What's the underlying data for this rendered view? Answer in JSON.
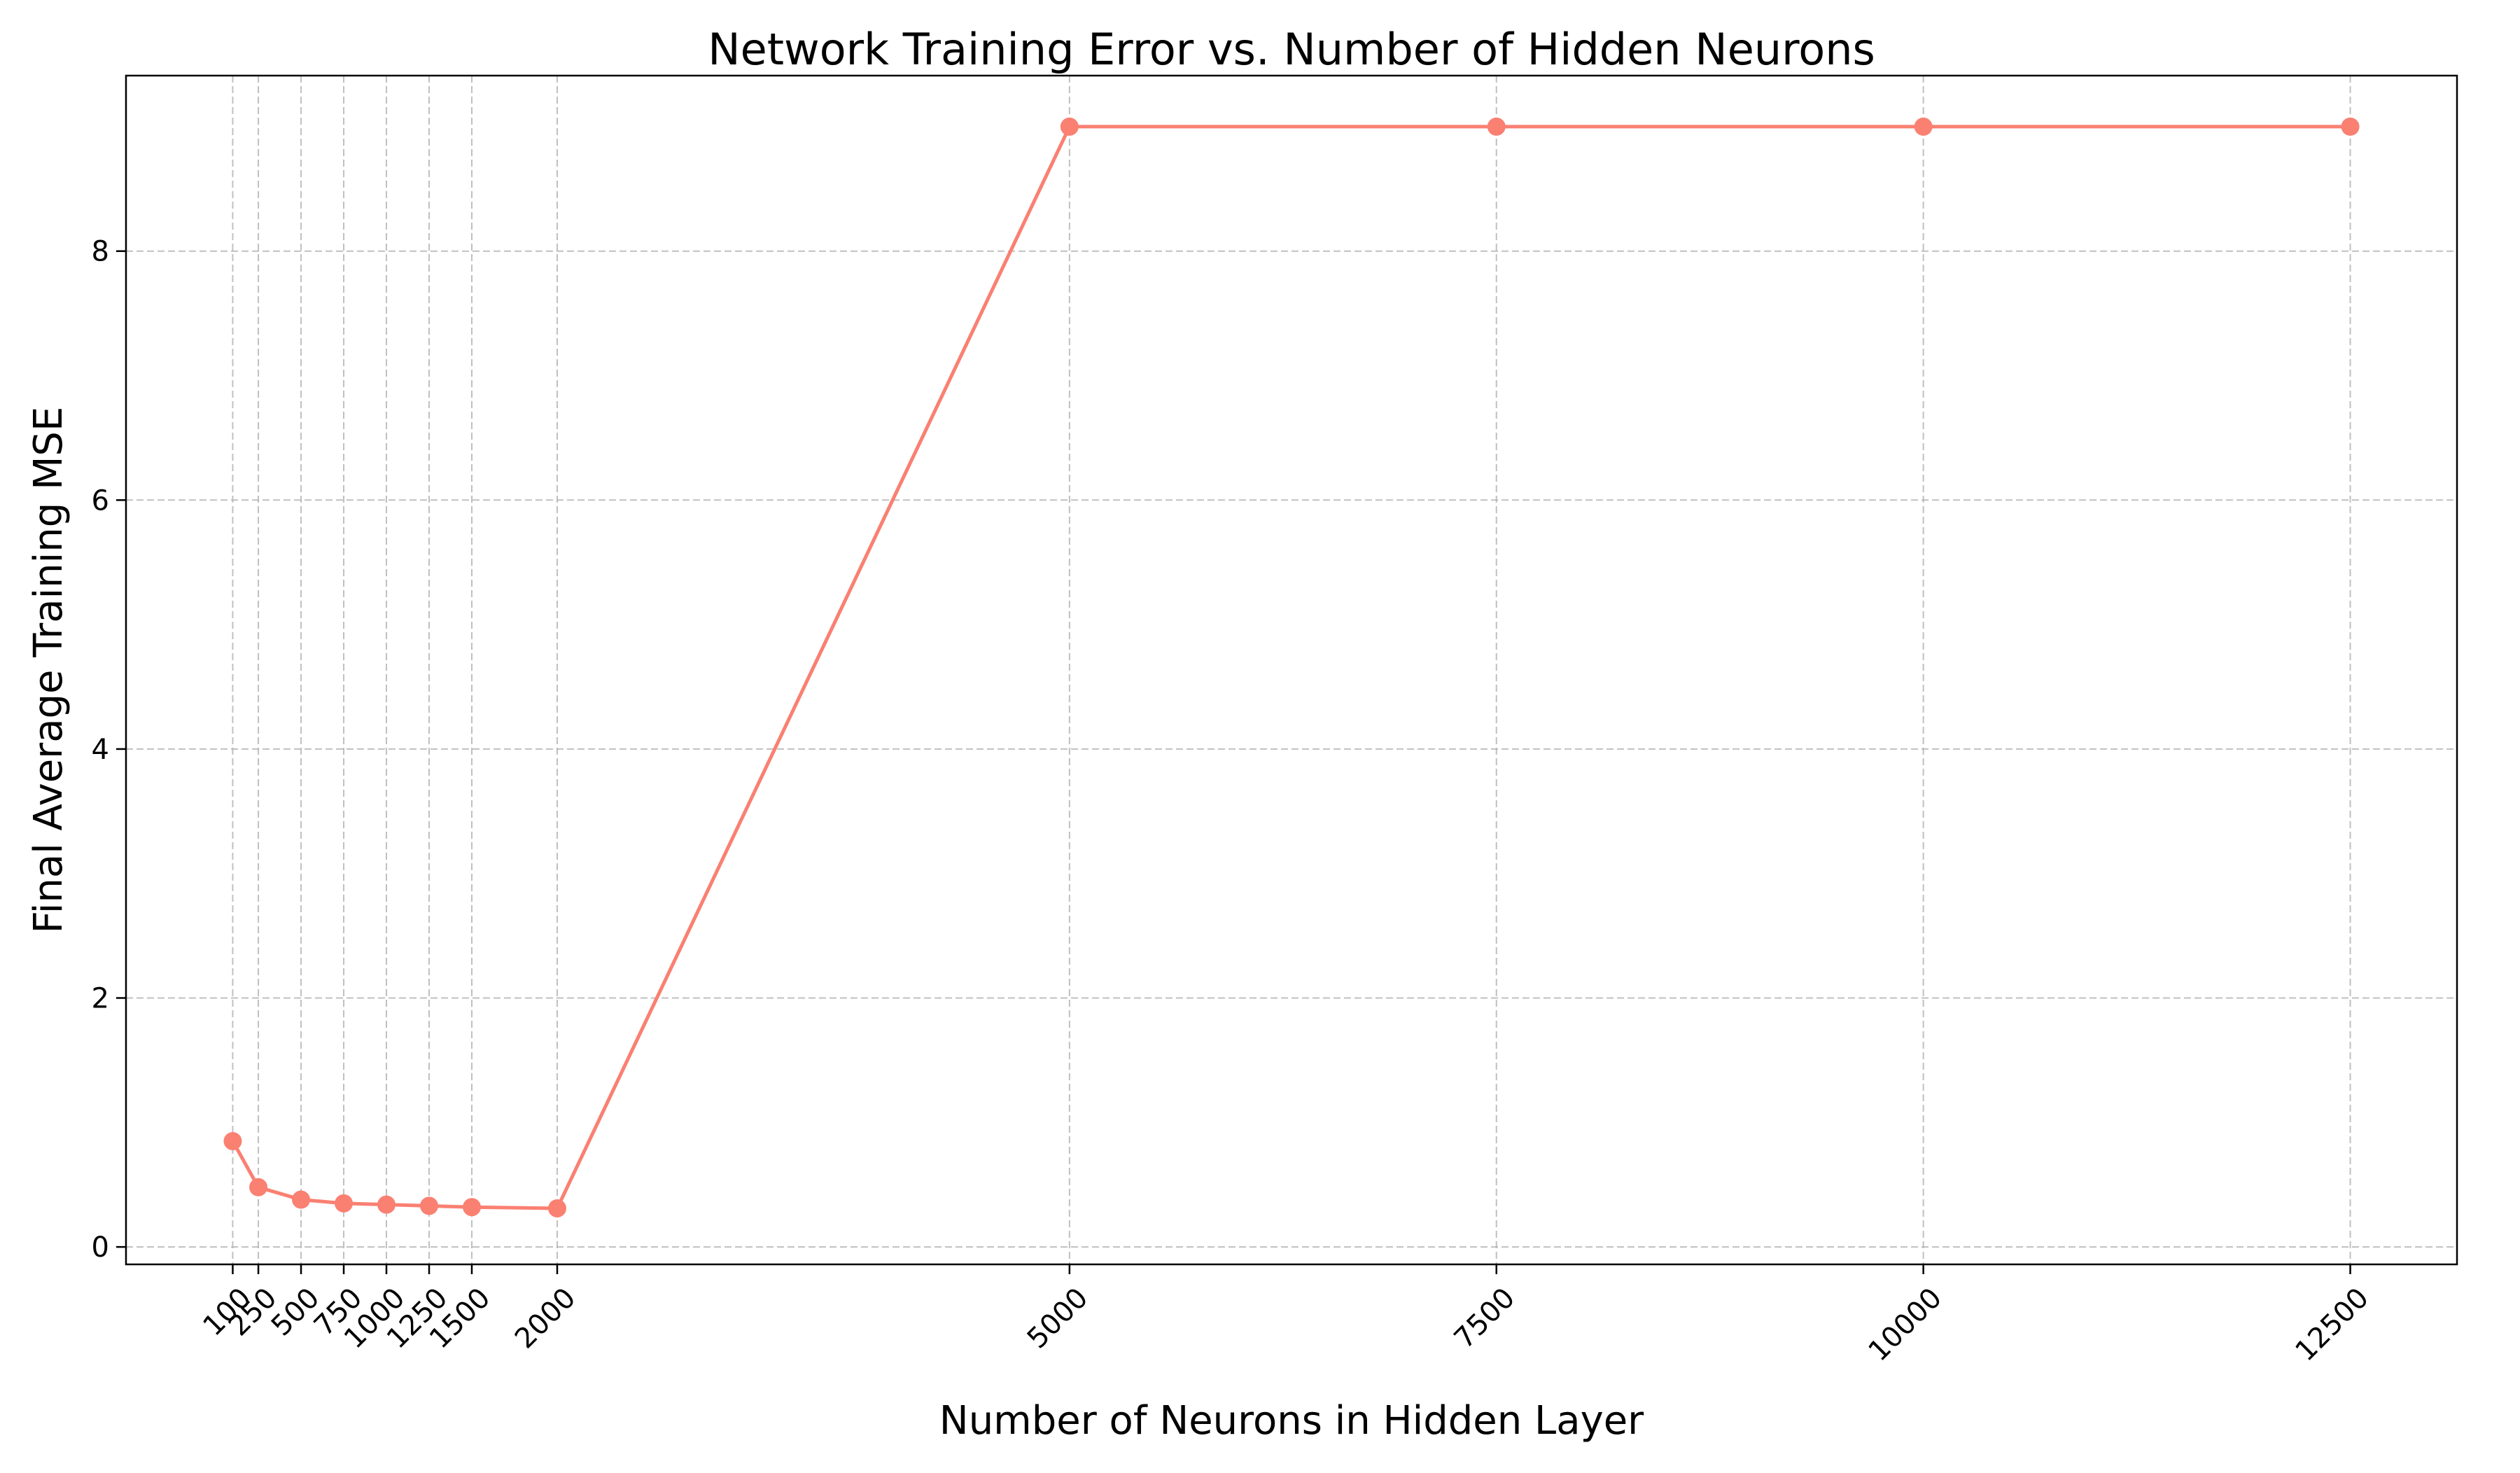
{
  "chart_data": {
    "type": "line",
    "title": "Network Training Error vs. Number of Hidden Neurons",
    "xlabel": "Number of Neurons in Hidden Layer",
    "ylabel": "Final Average Training MSE",
    "x": [
      100,
      250,
      500,
      750,
      1000,
      1250,
      1500,
      2000,
      5000,
      7500,
      10000,
      12500
    ],
    "x_tick_labels": [
      "100",
      "250",
      "500",
      "750",
      "1000",
      "1250",
      "1500",
      "2000",
      "5000",
      "7500",
      "10000",
      "12500"
    ],
    "series": [
      {
        "values": [
          0.85,
          0.48,
          0.38,
          0.35,
          0.34,
          0.33,
          0.32,
          0.31,
          9.0,
          9.0,
          9.0,
          9.0
        ],
        "color": "#FA8072",
        "marker": "circle"
      }
    ],
    "y_ticks": [
      0,
      2,
      4,
      6,
      8
    ],
    "y_tick_labels": [
      "0",
      "2",
      "4",
      "6",
      "8"
    ],
    "xlim": [
      -525,
      13125
    ],
    "ylim": [
      -0.14,
      9.41
    ],
    "grid": true,
    "grid_style": "dashed",
    "x_tick_rotation": 45
  }
}
